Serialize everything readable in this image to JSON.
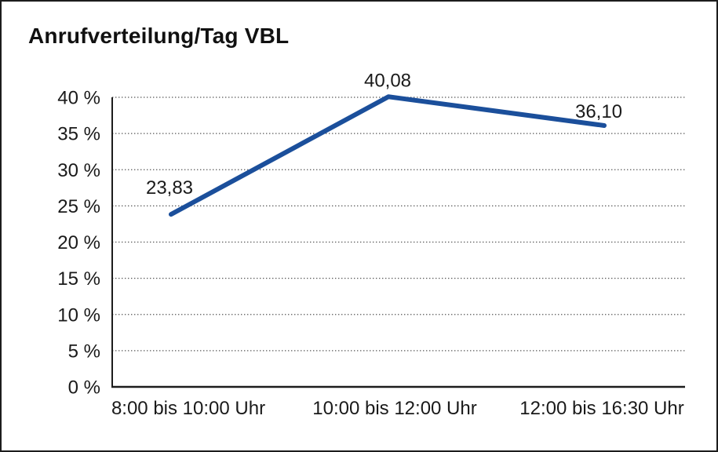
{
  "chart_data": {
    "type": "line",
    "title": "Anrufverteilung/Tag VBL",
    "categories": [
      "8:00 bis 10:00 Uhr",
      "10:00 bis 12:00 Uhr",
      "12:00 bis 16:30 Uhr"
    ],
    "series": [
      {
        "values": [
          23.83,
          40.08,
          36.1
        ],
        "data_labels": [
          "23,83",
          "40,08",
          "36,10"
        ],
        "color": "#1B4F9B"
      }
    ],
    "ylim": [
      0,
      40
    ],
    "ytick_step": 5,
    "ytick_labels": [
      "0 %",
      "5 %",
      "10 %",
      "15 %",
      "20 %",
      "25 %",
      "30 %",
      "35 %",
      "40 %"
    ],
    "grid": "horizontal-dotted",
    "grid_color": "#555555",
    "axis_color": "#1c1c1c",
    "text_color": "#1a1a1a",
    "legend": "none"
  }
}
